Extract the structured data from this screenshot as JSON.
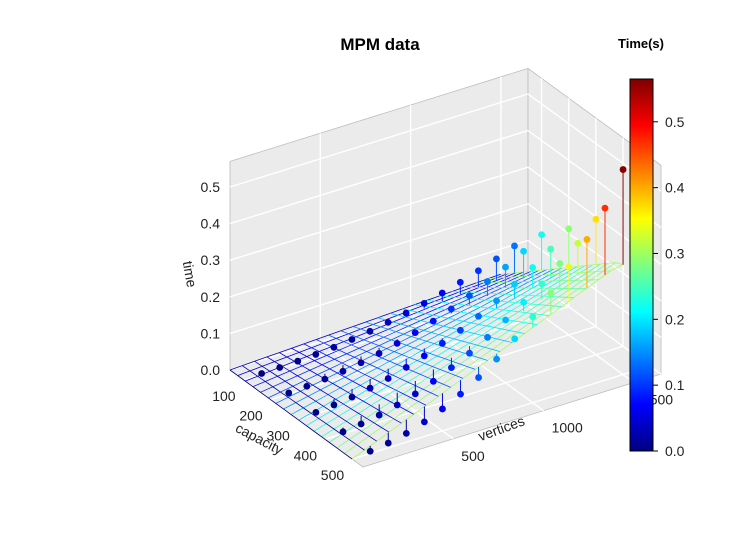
{
  "chart_data": {
    "type": "scatter3d",
    "title": "MPM  data",
    "xlabel": "capacity",
    "ylabel": "vertices",
    "zlabel": "time",
    "colorbar_title": "Time(s)",
    "xlim": [
      50,
      540
    ],
    "ylim": [
      0,
      1650
    ],
    "zlim": [
      0,
      0.57
    ],
    "x_ticks": [
      100,
      200,
      300,
      400,
      500
    ],
    "y_ticks": [
      500,
      1000,
      1500
    ],
    "z_ticks": [
      0.0,
      0.1,
      0.2,
      0.3,
      0.4,
      0.5
    ],
    "z_tick_labels": [
      "0.0",
      "0.1",
      "0.2",
      "0.3",
      "0.4",
      "0.5"
    ],
    "colorbar_ticks": [
      0.0,
      0.1,
      0.2,
      0.3,
      0.4,
      0.5
    ],
    "colorbar_tick_labels": [
      "0.0",
      "0.1",
      "0.2",
      "0.3",
      "0.4",
      "0.5"
    ],
    "colorbar_range": [
      0,
      0.565
    ],
    "grid": true,
    "surface": "fitted regression plane",
    "capacities": [
      100,
      200,
      300,
      400,
      500
    ],
    "vertices": [
      100,
      200,
      300,
      400,
      500,
      600,
      700,
      800,
      900,
      1000,
      1100,
      1200,
      1300,
      1400,
      1500
    ],
    "points": [
      [
        100,
        100,
        0.002
      ],
      [
        100,
        200,
        0.003
      ],
      [
        100,
        300,
        0.005
      ],
      [
        100,
        400,
        0.008
      ],
      [
        100,
        500,
        0.012
      ],
      [
        100,
        600,
        0.018
      ],
      [
        100,
        700,
        0.025
      ],
      [
        100,
        800,
        0.034
      ],
      [
        100,
        900,
        0.044
      ],
      [
        100,
        1000,
        0.055
      ],
      [
        100,
        1100,
        0.068
      ],
      [
        100,
        1200,
        0.082
      ],
      [
        100,
        1300,
        0.098
      ],
      [
        100,
        1400,
        0.115
      ],
      [
        100,
        1500,
        0.135
      ],
      [
        200,
        100,
        0.003
      ],
      [
        200,
        200,
        0.006
      ],
      [
        200,
        300,
        0.01
      ],
      [
        200,
        400,
        0.016
      ],
      [
        200,
        500,
        0.024
      ],
      [
        200,
        600,
        0.034
      ],
      [
        200,
        700,
        0.046
      ],
      [
        200,
        800,
        0.06
      ],
      [
        200,
        900,
        0.076
      ],
      [
        200,
        1000,
        0.094
      ],
      [
        200,
        1100,
        0.115
      ],
      [
        200,
        1200,
        0.138
      ],
      [
        200,
        1300,
        0.162
      ],
      [
        200,
        1400,
        0.19
      ],
      [
        200,
        1500,
        0.22
      ],
      [
        300,
        100,
        0.004
      ],
      [
        300,
        200,
        0.009
      ],
      [
        300,
        300,
        0.015
      ],
      [
        300,
        400,
        0.024
      ],
      [
        300,
        500,
        0.035
      ],
      [
        300,
        600,
        0.05
      ],
      [
        300,
        700,
        0.066
      ],
      [
        300,
        800,
        0.085
      ],
      [
        300,
        900,
        0.105
      ],
      [
        300,
        1000,
        0.128
      ],
      [
        300,
        1100,
        0.155
      ],
      [
        300,
        1200,
        0.185
      ],
      [
        300,
        1300,
        0.215
      ],
      [
        300,
        1400,
        0.25
      ],
      [
        300,
        1500,
        0.29
      ],
      [
        400,
        100,
        0.005
      ],
      [
        400,
        200,
        0.011
      ],
      [
        400,
        300,
        0.02
      ],
      [
        400,
        400,
        0.032
      ],
      [
        400,
        500,
        0.047
      ],
      [
        400,
        600,
        0.066
      ],
      [
        400,
        700,
        0.088
      ],
      [
        400,
        800,
        0.112
      ],
      [
        400,
        900,
        0.14
      ],
      [
        400,
        1000,
        0.172
      ],
      [
        400,
        1100,
        0.205
      ],
      [
        400,
        1200,
        0.24
      ],
      [
        400,
        1300,
        0.28
      ],
      [
        400,
        1400,
        0.32
      ],
      [
        400,
        1500,
        0.37
      ],
      [
        500,
        100,
        0.006
      ],
      [
        500,
        200,
        0.013
      ],
      [
        500,
        300,
        0.024
      ],
      [
        500,
        400,
        0.04
      ],
      [
        500,
        500,
        0.06
      ],
      [
        500,
        600,
        0.085
      ],
      [
        500,
        700,
        0.115
      ],
      [
        500,
        800,
        0.15
      ],
      [
        500,
        900,
        0.19
      ],
      [
        500,
        1000,
        0.235
      ],
      [
        500,
        1100,
        0.285
      ],
      [
        500,
        1200,
        0.34
      ],
      [
        500,
        1300,
        0.4
      ],
      [
        500,
        1400,
        0.47
      ],
      [
        500,
        1500,
        0.56
      ]
    ]
  }
}
